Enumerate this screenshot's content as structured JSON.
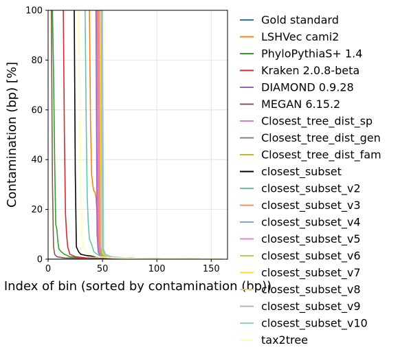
{
  "chart_data": {
    "type": "line",
    "title": "",
    "xlabel": "Index of bin (sorted by contamination (bp))",
    "ylabel": "Contamination (bp) [%]",
    "xlim": [
      0,
      165
    ],
    "ylim": [
      0,
      100
    ],
    "xticks": [
      0,
      50,
      100,
      150
    ],
    "yticks": [
      0,
      20,
      40,
      60,
      80,
      100
    ],
    "grid": true,
    "legend_position": "outside-right",
    "series": [
      {
        "name": "Gold standard",
        "color": "#1f77b4",
        "points": [
          [
            0,
            0
          ],
          [
            160,
            0
          ]
        ]
      },
      {
        "name": "LSHVec cami2",
        "color": "#ff7f0e",
        "points": [
          [
            38,
            100
          ],
          [
            39,
            55
          ],
          [
            40,
            34
          ],
          [
            41,
            30
          ],
          [
            42,
            27.5
          ],
          [
            43,
            27
          ],
          [
            44,
            25
          ],
          [
            45,
            18
          ],
          [
            46,
            8
          ],
          [
            47,
            4
          ],
          [
            48,
            2
          ],
          [
            52,
            1
          ],
          [
            60,
            0.5
          ],
          [
            80,
            0.2
          ],
          [
            160,
            0
          ]
        ]
      },
      {
        "name": "PhyloPythiaS+ 1.4",
        "color": "#2ca02c",
        "points": [
          [
            4,
            100
          ],
          [
            5,
            75
          ],
          [
            6,
            40
          ],
          [
            7,
            14
          ],
          [
            8,
            12
          ],
          [
            9,
            7
          ],
          [
            10,
            4
          ],
          [
            12,
            3
          ],
          [
            15,
            2
          ],
          [
            20,
            1
          ],
          [
            30,
            0.5
          ],
          [
            60,
            0.2
          ],
          [
            160,
            0
          ]
        ]
      },
      {
        "name": "Kraken 2.0.8-beta",
        "color": "#d62728",
        "points": [
          [
            14,
            100
          ],
          [
            15,
            50
          ],
          [
            16,
            18
          ],
          [
            17,
            10
          ],
          [
            18,
            5
          ],
          [
            20,
            2
          ],
          [
            25,
            1
          ],
          [
            35,
            0.5
          ],
          [
            60,
            0.2
          ],
          [
            160,
            0
          ]
        ]
      },
      {
        "name": "DIAMOND 0.9.28",
        "color": "#9467bd",
        "points": [
          [
            44,
            100
          ],
          [
            45,
            10
          ],
          [
            46,
            3
          ],
          [
            48,
            1
          ],
          [
            55,
            0.5
          ],
          [
            70,
            0.2
          ],
          [
            160,
            0
          ]
        ]
      },
      {
        "name": "MEGAN 6.15.2",
        "color": "#8c564b",
        "points": [
          [
            3,
            100
          ],
          [
            4,
            30
          ],
          [
            5,
            5
          ],
          [
            6,
            2
          ],
          [
            8,
            1
          ],
          [
            15,
            0.5
          ],
          [
            40,
            0.2
          ],
          [
            160,
            0
          ]
        ]
      },
      {
        "name": "Closest_tree_dist_sp",
        "color": "#e377c2",
        "points": [
          [
            45,
            100
          ],
          [
            46,
            8
          ],
          [
            47,
            3
          ],
          [
            50,
            1
          ],
          [
            60,
            0.5
          ],
          [
            100,
            0.1
          ],
          [
            160,
            0
          ]
        ]
      },
      {
        "name": "Closest_tree_dist_gen",
        "color": "#7f7f7f",
        "points": [
          [
            46,
            100
          ],
          [
            47,
            8
          ],
          [
            48,
            3
          ],
          [
            50,
            1
          ],
          [
            60,
            0.5
          ],
          [
            100,
            0.1
          ],
          [
            160,
            0
          ]
        ]
      },
      {
        "name": "Closest_tree_dist_fam",
        "color": "#bcbd22",
        "points": [
          [
            47,
            100
          ],
          [
            48,
            6
          ],
          [
            49,
            2
          ],
          [
            52,
            1
          ],
          [
            65,
            0.5
          ],
          [
            100,
            0.1
          ],
          [
            160,
            0
          ]
        ]
      },
      {
        "name": "closest_subset",
        "color": "#000000",
        "points": [
          [
            24,
            100
          ],
          [
            25,
            35
          ],
          [
            26,
            5
          ],
          [
            28,
            3
          ],
          [
            30,
            2
          ],
          [
            35,
            1.5
          ],
          [
            45,
            1
          ],
          [
            60,
            0.5
          ],
          [
            100,
            0.2
          ],
          [
            160,
            0
          ]
        ]
      },
      {
        "name": "closest_subset_v2",
        "color": "#66c2a5",
        "points": [
          [
            34,
            100
          ],
          [
            35,
            55
          ],
          [
            36,
            25
          ],
          [
            37,
            14
          ],
          [
            38,
            8
          ],
          [
            40,
            6
          ],
          [
            42,
            3
          ],
          [
            45,
            2
          ],
          [
            50,
            1
          ],
          [
            60,
            0.5
          ],
          [
            80,
            0.2
          ],
          [
            160,
            0
          ]
        ]
      },
      {
        "name": "closest_subset_v3",
        "color": "#fc8d62",
        "points": [
          [
            46,
            100
          ],
          [
            47,
            10
          ],
          [
            48,
            3
          ],
          [
            52,
            1
          ],
          [
            70,
            0.3
          ],
          [
            160,
            0
          ]
        ]
      },
      {
        "name": "closest_subset_v4",
        "color": "#8da0cb",
        "points": [
          [
            47,
            100
          ],
          [
            48,
            8
          ],
          [
            49,
            3
          ],
          [
            52,
            1
          ],
          [
            70,
            0.3
          ],
          [
            160,
            0
          ]
        ]
      },
      {
        "name": "closest_subset_v5",
        "color": "#e78ac3",
        "points": [
          [
            47,
            100
          ],
          [
            48,
            6
          ],
          [
            50,
            2
          ],
          [
            55,
            1
          ],
          [
            70,
            0.3
          ],
          [
            160,
            0
          ]
        ]
      },
      {
        "name": "closest_subset_v6",
        "color": "#a6d854",
        "points": [
          [
            48,
            100
          ],
          [
            49,
            6
          ],
          [
            50,
            2
          ],
          [
            55,
            1
          ],
          [
            70,
            0.3
          ],
          [
            160,
            0
          ]
        ]
      },
      {
        "name": "closest_subset_v7",
        "color": "#ffd92f",
        "points": [
          [
            48,
            100
          ],
          [
            49,
            5
          ],
          [
            51,
            2
          ],
          [
            56,
            1
          ],
          [
            72,
            0.3
          ],
          [
            160,
            0
          ]
        ]
      },
      {
        "name": "closest_subset_v8",
        "color": "#e5c494",
        "points": [
          [
            49,
            100
          ],
          [
            50,
            5
          ],
          [
            52,
            2
          ],
          [
            57,
            1
          ],
          [
            74,
            0.3
          ],
          [
            160,
            0
          ]
        ]
      },
      {
        "name": "closest_subset_v9",
        "color": "#b3b3b3",
        "points": [
          [
            49,
            100
          ],
          [
            50,
            4
          ],
          [
            52,
            2
          ],
          [
            58,
            1
          ],
          [
            75,
            0.3
          ],
          [
            160,
            0
          ]
        ]
      },
      {
        "name": "closest_subset_v10",
        "color": "#8dd3c7",
        "points": [
          [
            50,
            100
          ],
          [
            51,
            4
          ],
          [
            53,
            2
          ],
          [
            58,
            1
          ],
          [
            76,
            0.3
          ],
          [
            160,
            0
          ]
        ]
      },
      {
        "name": "tax2tree",
        "color": "#ffffb3",
        "points": [
          [
            28,
            100
          ],
          [
            29,
            60
          ],
          [
            30,
            25
          ],
          [
            31,
            10
          ],
          [
            32,
            5
          ],
          [
            34,
            3
          ],
          [
            38,
            2
          ],
          [
            45,
            1
          ],
          [
            60,
            0.5
          ],
          [
            100,
            0.1
          ],
          [
            160,
            0
          ]
        ]
      }
    ]
  }
}
